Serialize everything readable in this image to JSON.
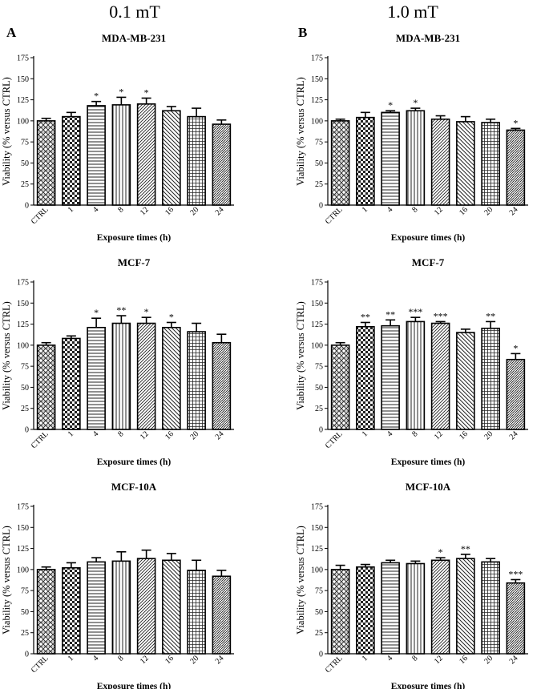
{
  "figure": {
    "headers": [
      "0.1 mT",
      "1.0 mT"
    ],
    "panel_letters": [
      "A",
      "B"
    ]
  },
  "chart_data": [
    {
      "type": "bar",
      "title": "MDA-MB-231",
      "xlabel": "Exposure times (h)",
      "ylabel": "Viability (% versus CTRL)",
      "ylim": [
        0,
        175
      ],
      "yticks": [
        0,
        25,
        50,
        75,
        100,
        125,
        150,
        175
      ],
      "categories": [
        "CTRL",
        "1",
        "4",
        "8",
        "12",
        "16",
        "20",
        "24"
      ],
      "values": [
        100,
        105,
        118,
        119,
        120,
        112,
        105,
        96
      ],
      "errors": [
        3,
        5,
        5,
        9,
        7,
        5,
        10,
        5
      ],
      "significance": [
        "",
        "",
        "*",
        "*",
        "*",
        "",
        "",
        ""
      ],
      "patterns": [
        "pat-weave",
        "pat-check",
        "pat-hlines",
        "pat-vlines",
        "pat-diag-dense",
        "pat-diag-back",
        "pat-grid",
        "pat-diag-dash"
      ]
    },
    {
      "type": "bar",
      "title": "MDA-MB-231",
      "xlabel": "Exposure times (h)",
      "ylabel": "Viability (% versus CTRL)",
      "ylim": [
        0,
        175
      ],
      "yticks": [
        0,
        25,
        50,
        75,
        100,
        125,
        150,
        175
      ],
      "categories": [
        "CTRL",
        "1",
        "4",
        "8",
        "12",
        "16",
        "20",
        "24"
      ],
      "values": [
        100,
        104,
        110,
        112,
        102,
        99,
        98,
        89
      ],
      "errors": [
        2,
        6,
        2,
        3,
        4,
        6,
        4,
        2
      ],
      "significance": [
        "",
        "",
        "*",
        "*",
        "",
        "",
        "",
        "*"
      ],
      "patterns": [
        "pat-weave",
        "pat-check",
        "pat-hlines",
        "pat-vlines",
        "pat-diag-dense",
        "pat-diag-back",
        "pat-grid",
        "pat-diag-dash"
      ]
    },
    {
      "type": "bar",
      "title": "MCF-7",
      "xlabel": "Exposure times (h)",
      "ylabel": "Viability (% versus CTRL)",
      "ylim": [
        0,
        175
      ],
      "yticks": [
        0,
        25,
        50,
        75,
        100,
        125,
        150,
        175
      ],
      "categories": [
        "CTRL",
        "1",
        "4",
        "8",
        "12",
        "16",
        "20",
        "24"
      ],
      "values": [
        100,
        108,
        121,
        126,
        126,
        121,
        116,
        103
      ],
      "errors": [
        3,
        3,
        11,
        9,
        7,
        6,
        10,
        10
      ],
      "significance": [
        "",
        "",
        "*",
        "**",
        "*",
        "*",
        "",
        ""
      ],
      "patterns": [
        "pat-weave",
        "pat-check",
        "pat-hlines",
        "pat-vlines",
        "pat-diag-dense",
        "pat-diag-back",
        "pat-grid",
        "pat-diag-dash"
      ]
    },
    {
      "type": "bar",
      "title": "MCF-7",
      "xlabel": "Exposure times (h)",
      "ylabel": "Viability (% versus CTRL)",
      "ylim": [
        0,
        175
      ],
      "yticks": [
        0,
        25,
        50,
        75,
        100,
        125,
        150,
        175
      ],
      "categories": [
        "CTRL",
        "1",
        "4",
        "8",
        "12",
        "16",
        "20",
        "24"
      ],
      "values": [
        100,
        122,
        123,
        128,
        126,
        115,
        120,
        83
      ],
      "errors": [
        3,
        5,
        7,
        5,
        2,
        4,
        8,
        7
      ],
      "significance": [
        "",
        "**",
        "**",
        "***",
        "***",
        "",
        "**",
        "*"
      ],
      "patterns": [
        "pat-weave",
        "pat-check",
        "pat-hlines",
        "pat-vlines",
        "pat-diag-dense",
        "pat-diag-back",
        "pat-grid",
        "pat-diag-dash"
      ]
    },
    {
      "type": "bar",
      "title": "MCF-10A",
      "xlabel": "Exposure times (h)",
      "ylabel": "Viability (% versus CTRL)",
      "ylim": [
        0,
        175
      ],
      "yticks": [
        0,
        25,
        50,
        75,
        100,
        125,
        150,
        175
      ],
      "categories": [
        "CTRL",
        "1",
        "4",
        "8",
        "12",
        "16",
        "20",
        "24"
      ],
      "values": [
        100,
        102,
        109,
        110,
        113,
        111,
        99,
        92
      ],
      "errors": [
        3,
        6,
        5,
        11,
        10,
        8,
        12,
        7
      ],
      "significance": [
        "",
        "",
        "",
        "",
        "",
        "",
        "",
        ""
      ],
      "patterns": [
        "pat-weave",
        "pat-check",
        "pat-hlines",
        "pat-vlines",
        "pat-diag-dense",
        "pat-diag-back",
        "pat-grid",
        "pat-diag-dash"
      ]
    },
    {
      "type": "bar",
      "title": "MCF-10A",
      "xlabel": "Exposure times (h)",
      "ylabel": "Viability (% versus CTRL)",
      "ylim": [
        0,
        175
      ],
      "yticks": [
        0,
        25,
        50,
        75,
        100,
        125,
        150,
        175
      ],
      "categories": [
        "CTRL",
        "1",
        "4",
        "8",
        "12",
        "16",
        "20",
        "24"
      ],
      "values": [
        100,
        103,
        108,
        107,
        111,
        113,
        109,
        84
      ],
      "errors": [
        5,
        3,
        3,
        3,
        3,
        5,
        4,
        4
      ],
      "significance": [
        "",
        "",
        "",
        "",
        "*",
        "**",
        "",
        "***"
      ],
      "patterns": [
        "pat-weave",
        "pat-check",
        "pat-hlines",
        "pat-vlines",
        "pat-diag-dense",
        "pat-diag-back",
        "pat-grid",
        "pat-diag-dash"
      ]
    }
  ]
}
